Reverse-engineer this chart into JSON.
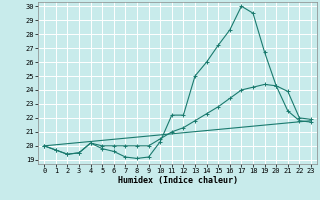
{
  "title": "",
  "xlabel": "Humidex (Indice chaleur)",
  "background_color": "#c8ebeb",
  "grid_color": "#ffffff",
  "line_color": "#1a7a6e",
  "xlim": [
    -0.5,
    23.5
  ],
  "ylim": [
    18.7,
    30.3
  ],
  "yticks": [
    19,
    20,
    21,
    22,
    23,
    24,
    25,
    26,
    27,
    28,
    29,
    30
  ],
  "xticks": [
    0,
    1,
    2,
    3,
    4,
    5,
    6,
    7,
    8,
    9,
    10,
    11,
    12,
    13,
    14,
    15,
    16,
    17,
    18,
    19,
    20,
    21,
    22,
    23
  ],
  "line1_x": [
    0,
    1,
    2,
    3,
    4,
    5,
    6,
    7,
    8,
    9,
    10,
    11,
    12,
    13,
    14,
    15,
    16,
    17,
    18,
    19,
    20,
    21,
    22,
    23
  ],
  "line1_y": [
    20.0,
    19.7,
    19.4,
    19.5,
    20.2,
    19.8,
    19.6,
    19.2,
    19.1,
    19.2,
    20.3,
    22.2,
    22.2,
    25.0,
    26.0,
    27.2,
    28.3,
    30.0,
    29.5,
    26.7,
    24.3,
    23.9,
    22.0,
    21.9
  ],
  "line2_x": [
    0,
    1,
    2,
    3,
    4,
    5,
    6,
    7,
    8,
    9,
    10,
    11,
    12,
    13,
    14,
    15,
    16,
    17,
    18,
    19,
    20,
    21,
    22,
    23
  ],
  "line2_y": [
    20.0,
    19.7,
    19.4,
    19.5,
    20.2,
    20.0,
    20.0,
    20.0,
    20.0,
    20.0,
    20.5,
    21.0,
    21.3,
    21.8,
    22.3,
    22.8,
    23.4,
    24.0,
    24.2,
    24.4,
    24.3,
    22.5,
    21.8,
    21.7
  ],
  "line3_x": [
    0,
    23
  ],
  "line3_y": [
    20.0,
    21.8
  ],
  "tick_fontsize": 5,
  "xlabel_fontsize": 6
}
